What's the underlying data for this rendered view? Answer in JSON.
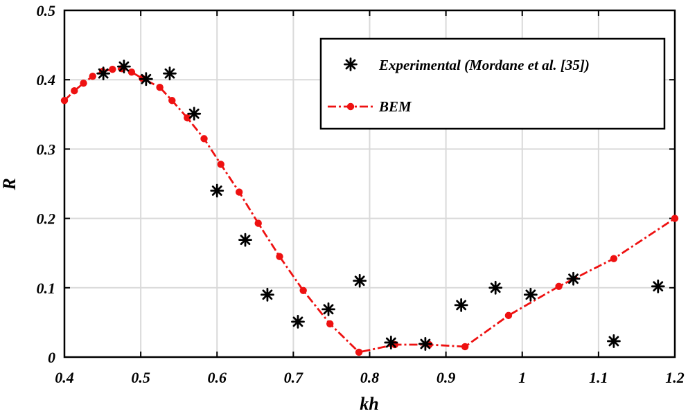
{
  "chart_data": {
    "type": "scatter",
    "xlabel": "kh",
    "ylabel": "R",
    "xlim": [
      0.4,
      1.2
    ],
    "ylim": [
      0,
      0.5
    ],
    "grid": true,
    "legend_position": "top-right",
    "x_ticks": [
      "0.4",
      "0.5",
      "0.6",
      "0.7",
      "0.8",
      "0.9",
      "1",
      "1.1",
      "1.2"
    ],
    "y_ticks": [
      "0",
      "0.1",
      "0.2",
      "0.3",
      "0.4",
      "0.5"
    ],
    "series": [
      {
        "name": "Experimental (Mordane et al. [35])",
        "style": "asterisk",
        "color": "#000000",
        "x": [
          0.451,
          0.478,
          0.507,
          0.538,
          0.57,
          0.6,
          0.637,
          0.666,
          0.706,
          0.746,
          0.787,
          0.828,
          0.873,
          0.92,
          0.965,
          1.011,
          1.067,
          1.12,
          1.178
        ],
        "y": [
          0.409,
          0.419,
          0.401,
          0.409,
          0.351,
          0.24,
          0.169,
          0.09,
          0.051,
          0.069,
          0.11,
          0.021,
          0.019,
          0.075,
          0.1,
          0.09,
          0.113,
          0.023,
          0.102
        ]
      },
      {
        "name": "BEM",
        "style": "dash-dot-circle",
        "color": "#ee1111",
        "x": [
          0.4,
          0.413,
          0.425,
          0.437,
          0.45,
          0.463,
          0.475,
          0.488,
          0.502,
          0.525,
          0.541,
          0.561,
          0.583,
          0.605,
          0.629,
          0.654,
          0.682,
          0.713,
          0.748,
          0.786,
          0.833,
          0.878,
          0.925,
          0.982,
          1.048,
          1.12,
          1.2
        ],
        "y": [
          0.37,
          0.384,
          0.395,
          0.405,
          0.412,
          0.415,
          0.416,
          0.411,
          0.402,
          0.389,
          0.37,
          0.345,
          0.315,
          0.278,
          0.238,
          0.193,
          0.145,
          0.096,
          0.048,
          0.007,
          0.018,
          0.018,
          0.015,
          0.06,
          0.102,
          0.142,
          0.2
        ]
      }
    ]
  }
}
